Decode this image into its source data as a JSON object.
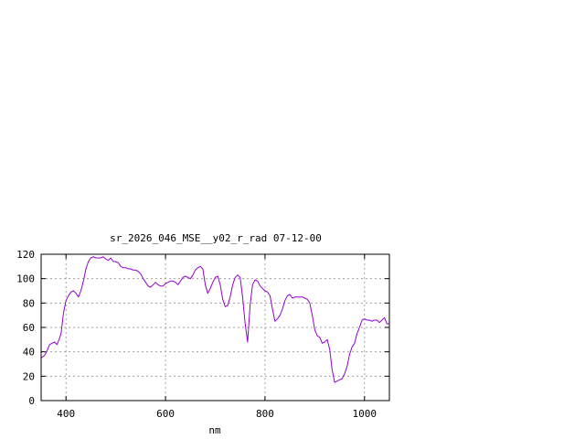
{
  "chart_data": {
    "type": "line",
    "title": "sr_2026_046_MSE__y02_r_rad 07-12-00",
    "xlabel": "nm",
    "ylabel": "",
    "xlim": [
      350,
      1050
    ],
    "ylim": [
      0,
      120
    ],
    "x_ticks": [
      400,
      600,
      800,
      1000
    ],
    "y_ticks": [
      0,
      20,
      40,
      60,
      80,
      100,
      120
    ],
    "grid": true,
    "legend": "none",
    "colors": {
      "series": "#9400d3",
      "grid": "#a0a0a0",
      "frame": "#000000"
    },
    "series": [
      {
        "x": [
          350,
          357,
          362,
          367,
          372,
          377,
          382,
          386,
          390,
          395,
          400,
          405,
          410,
          415,
          420,
          425,
          430,
          435,
          440,
          445,
          450,
          455,
          460,
          465,
          470,
          475,
          480,
          485,
          490,
          495,
          500,
          505,
          510,
          515,
          520,
          525,
          530,
          535,
          540,
          545,
          550,
          555,
          560,
          565,
          570,
          575,
          580,
          585,
          590,
          595,
          600,
          605,
          610,
          615,
          620,
          625,
          630,
          635,
          640,
          645,
          650,
          655,
          660,
          665,
          670,
          675,
          680,
          685,
          690,
          695,
          700,
          705,
          710,
          715,
          720,
          725,
          730,
          735,
          740,
          745,
          750,
          755,
          760,
          765,
          770,
          775,
          780,
          785,
          790,
          795,
          800,
          805,
          810,
          815,
          820,
          825,
          830,
          835,
          840,
          845,
          850,
          855,
          860,
          865,
          870,
          875,
          880,
          885,
          890,
          895,
          900,
          905,
          910,
          915,
          920,
          925,
          930,
          935,
          940,
          945,
          950,
          955,
          960,
          965,
          970,
          975,
          980,
          985,
          990,
          995,
          1000,
          1005,
          1010,
          1015,
          1020,
          1025,
          1030,
          1035,
          1040,
          1045,
          1050
        ],
        "y": [
          35,
          37,
          41,
          46,
          47,
          48,
          46,
          50,
          55,
          72,
          82,
          86,
          89,
          90,
          88,
          85,
          90,
          98,
          108,
          114,
          117,
          118,
          117,
          117,
          117,
          118,
          116,
          115,
          117,
          114,
          114,
          113,
          110,
          109,
          109,
          108,
          108,
          107,
          107,
          106,
          104,
          100,
          97,
          94,
          93,
          95,
          97,
          95,
          94,
          94,
          96,
          97,
          98,
          98,
          97,
          95,
          98,
          101,
          102,
          101,
          100,
          103,
          107,
          109,
          110,
          108,
          95,
          88,
          92,
          97,
          101,
          102,
          95,
          83,
          77,
          78,
          85,
          95,
          101,
          103,
          101,
          85,
          63,
          48,
          78,
          95,
          99,
          98,
          94,
          92,
          90,
          89,
          86,
          75,
          65,
          67,
          70,
          75,
          82,
          86,
          87,
          84,
          85,
          85,
          85,
          85,
          84,
          83,
          80,
          70,
          58,
          53,
          52,
          47,
          48,
          50,
          42,
          25,
          15,
          16,
          17,
          18,
          22,
          28,
          38,
          44,
          47,
          55,
          60,
          66,
          67,
          66,
          66,
          65,
          66,
          66,
          64,
          66,
          68,
          63,
          63
        ]
      }
    ]
  }
}
